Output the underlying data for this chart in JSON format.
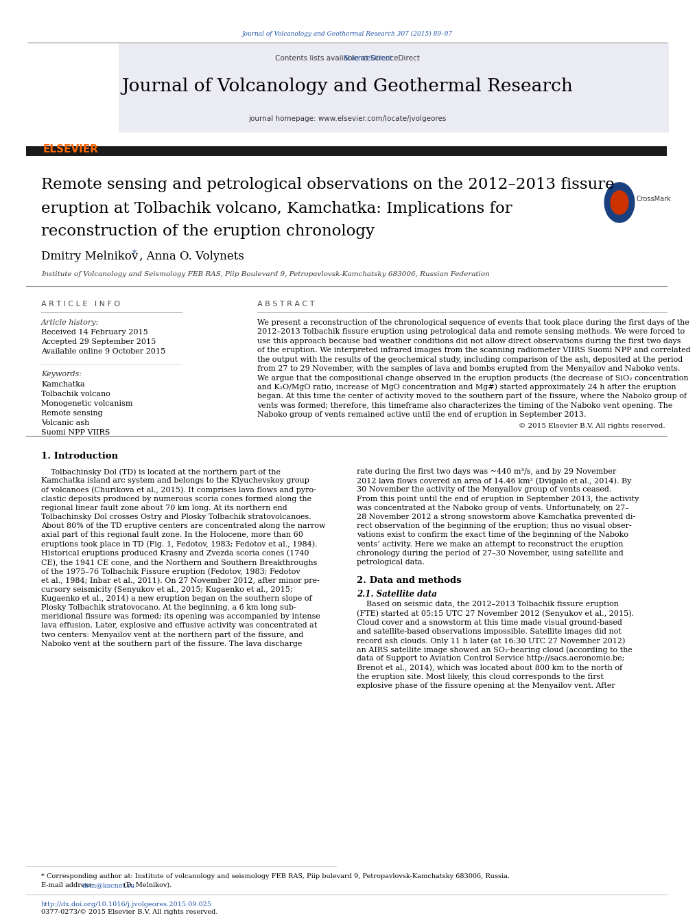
{
  "background_color": "#ffffff",
  "page_width": 9.92,
  "page_height": 13.23,
  "top_citation": "Journal of Volcanology and Geothermal Research 307 (2015) 89–97",
  "journal_name": "Journal of Volcanology and Geothermal Research",
  "contents_text": "Contents lists available at ",
  "sciencedirect_text": "ScienceDirect",
  "homepage_text": "journal homepage: www.elsevier.com/locate/jvolgeores",
  "article_title_line1": "Remote sensing and petrological observations on the 2012–2013 fissure",
  "article_title_line2": "eruption at Tolbachik volcano, Kamchatka: Implications for",
  "article_title_line3": "reconstruction of the eruption chronology",
  "authors": "Dmitry Melnikov *, Anna O. Volynets",
  "affiliation": "Institute of Volcanology and Seismology FEB RAS, Piip Boulevard 9, Petropavlovsk-Kamchatsky 683006, Russian Federation",
  "article_info_header": "A R T I C L E   I N F O",
  "abstract_header": "A B S T R A C T",
  "article_history_label": "Article history:",
  "received": "Received 14 February 2015",
  "accepted": "Accepted 29 September 2015",
  "available": "Available online 9 October 2015",
  "keywords_label": "Keywords:",
  "keywords": [
    "Kamchatka",
    "Tolbachik volcano",
    "Monogenetic volcanism",
    "Remote sensing",
    "Volcanic ash",
    "Suomi NPP VIIRS"
  ],
  "copyright": "© 2015 Elsevier B.V. All rights reserved.",
  "intro_header": "1. Introduction",
  "section2_header": "2. Data and methods",
  "section21_header": "2.1. Satellite data",
  "footer_corresponding": "* Corresponding author at: Institute of volcanology and seismology FEB RAS, Piip bulevard 9, Petropavlovsk-Kamchatsky 683006, Russia.",
  "footer_email_label": "E-mail address:",
  "footer_email": "dvm@kscnet.ru",
  "footer_email_name": "(D. Melnikov).",
  "footer_doi": "http://dx.doi.org/10.1016/j.jvolgeores.2015.09.025",
  "footer_issn": "0377-0273/© 2015 Elsevier B.V. All rights reserved.",
  "header_bg_color": "#ebebf3",
  "black_bar_color": "#1a1a1a",
  "link_color": "#2255aa",
  "elsevier_color": "#ff6600",
  "abstract_lines": [
    "We present a reconstruction of the chronological sequence of events that took place during the first days of the",
    "2012–2013 Tolbachik fissure eruption using petrological data and remote sensing methods. We were forced to",
    "use this approach because bad weather conditions did not allow direct observations during the first two days",
    "of the eruption. We interpreted infrared images from the scanning radiometer VIIRS Suomi NPP and correlated",
    "the output with the results of the geochemical study, including comparison of the ash, deposited at the period",
    "from 27 to 29 November, with the samples of lava and bombs erupted from the Menyailov and Naboko vents.",
    "We argue that the compositional change observed in the eruption products (the decrease of SiO₂ concentration",
    "and K₂O/MgO ratio, increase of MgO concentration and Mg#) started approximately 24 h after the eruption",
    "began. At this time the center of activity moved to the southern part of the fissure, where the Naboko group of",
    "vents was formed; therefore, this timeframe also characterizes the timing of the Naboko vent opening. The",
    "Naboko group of vents remained active until the end of eruption in September 2013."
  ],
  "intro_left_lines": [
    "    Tolbachinsky Dol (TD) is located at the northern part of the",
    "Kamchatka island arc system and belongs to the Klyuchevskoy group",
    "of volcanoes (Churikova et al., 2015). It comprises lava flows and pyro-",
    "clastic deposits produced by numerous scoria cones formed along the",
    "regional linear fault zone about 70 km long. At its northern end",
    "Tolbachinsky Dol crosses Ostry and Plosky Tolbachik stratovolcanoes.",
    "About 80% of the TD eruptive centers are concentrated along the narrow",
    "axial part of this regional fault zone. In the Holocene, more than 60",
    "eruptions took place in TD (Fig. 1, Fedotov, 1983; Fedotov et al., 1984).",
    "Historical eruptions produced Krasny and Zvezda scoria cones (1740",
    "CE), the 1941 CE cone, and the Northern and Southern Breakthroughs",
    "of the 1975–76 Tolbachik Fissure eruption (Fedotov, 1983; Fedotov",
    "et al., 1984; Inbar et al., 2011). On 27 November 2012, after minor pre-",
    "cursory seismicity (Senyukov et al., 2015; Kugaenko et al., 2015;",
    "Kugaenko et al., 2014) a new eruption began on the southern slope of",
    "Plosky Tolbachik stratovocano. At the beginning, a 6 km long sub-",
    "meridional fissure was formed; its opening was accompanied by intense",
    "lava effusion. Later, explosive and effusive activity was concentrated at",
    "two centers: Menyailov vent at the northern part of the fissure, and",
    "Naboko vent at the southern part of the fissure. The lava discharge"
  ],
  "intro_right_lines": [
    "rate during the first two days was ~440 m³/s, and by 29 November",
    "2012 lava flows covered an area of 14.46 km² (Dvigalo et al., 2014). By",
    "30 November the activity of the Menyailov group of vents ceased.",
    "From this point until the end of eruption in September 2013, the activity",
    "was concentrated at the Naboko group of vents. Unfortunately, on 27–",
    "28 November 2012 a strong snowstorm above Kamchatka prevented di-",
    "rect observation of the beginning of the eruption; thus no visual obser-",
    "vations exist to confirm the exact time of the beginning of the Naboko",
    "vents’ activity. Here we make an attempt to reconstruct the eruption",
    "chronology during the period of 27–30 November, using satellite and",
    "petrological data."
  ],
  "section21_lines": [
    "    Based on seismic data, the 2012–2013 Tolbachik fissure eruption",
    "(FTE) started at 05:15 UTC 27 November 2012 (Senyukov et al., 2015).",
    "Cloud cover and a snowstorm at this time made visual ground-based",
    "and satellite-based observations impossible. Satellite images did not",
    "record ash clouds. Only 11 h later (at 16:30 UTC 27 November 2012)",
    "an AIRS satellite image showed an SO₂-bearing cloud (according to the",
    "data of Support to Aviation Control Service http://sacs.aeronomie.be;",
    "Brenot et al., 2014), which was located about 800 km to the north of",
    "the eruption site. Most likely, this cloud corresponds to the first",
    "explosive phase of the fissure opening at the Menyailov vent. After"
  ]
}
